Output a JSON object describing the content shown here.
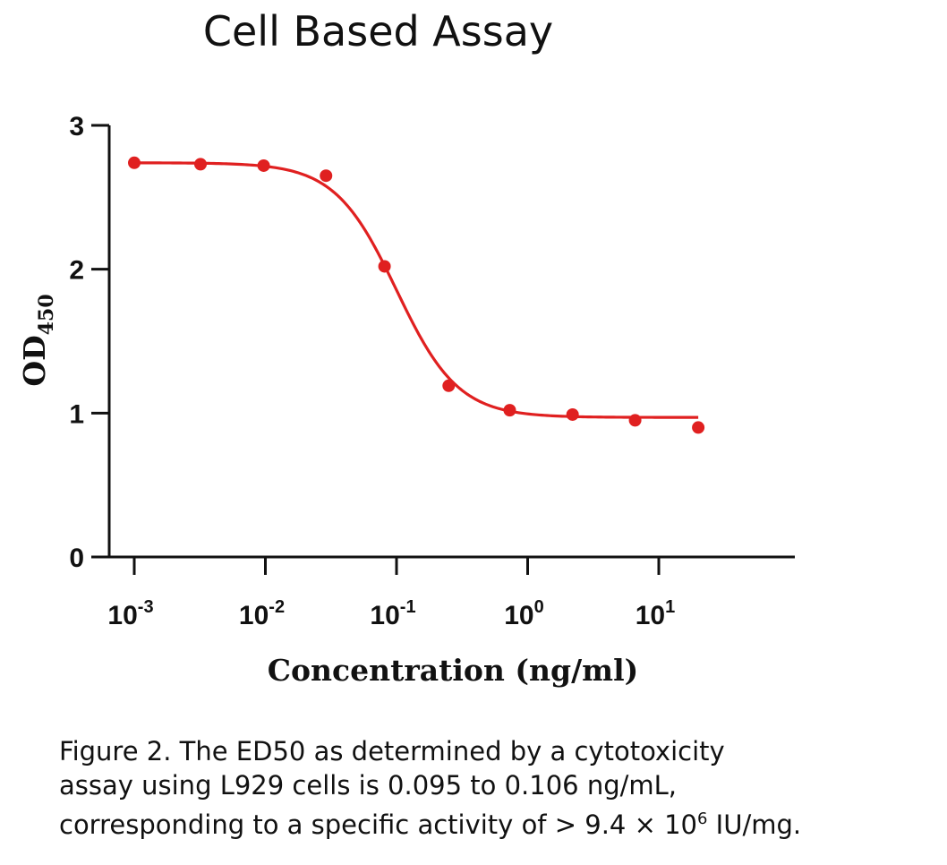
{
  "title": "Cell Based Assay",
  "caption": {
    "line1": "Figure 2. The ED50 as determined by a cytotoxicity",
    "line2": "assay using L929 cells is 0.095 to 0.106 ng/mL,",
    "line3_prefix": "corresponding to a specific activity  of > 9.4 × 10",
    "line3_exp": "6",
    "line3_suffix": " IU/mg."
  },
  "colors": {
    "series": "#e02020",
    "axis": "#111111"
  },
  "chart_data": {
    "type": "scatter",
    "title": "Cell Based Assay",
    "xlabel": "Concentration (ng/ml)",
    "ylabel": {
      "main": "OD",
      "sub": "450"
    },
    "x_scale": "log",
    "xlim": [
      0.00075,
      150
    ],
    "ylim": [
      0,
      3
    ],
    "x_ticks": [
      {
        "value": 0.001,
        "base": "10",
        "exp": "-3"
      },
      {
        "value": 0.01,
        "base": "10",
        "exp": "-2"
      },
      {
        "value": 0.1,
        "base": "10",
        "exp": "-1"
      },
      {
        "value": 1,
        "base": "10",
        "exp": "0"
      },
      {
        "value": 10,
        "base": "10",
        "exp": "1"
      }
    ],
    "y_ticks": [
      0,
      1,
      2,
      3
    ],
    "series": [
      {
        "x": [
          0.001,
          0.0032,
          0.0097,
          0.029,
          0.081,
          0.25,
          0.73,
          2.2,
          6.6,
          20
        ],
        "y": [
          2.74,
          2.73,
          2.72,
          2.65,
          2.02,
          1.19,
          1.02,
          0.99,
          0.95,
          0.9
        ],
        "fit": {
          "bottom": 0.97,
          "top": 2.74,
          "ec50": 0.1,
          "hill": 1.85
        }
      }
    ]
  }
}
